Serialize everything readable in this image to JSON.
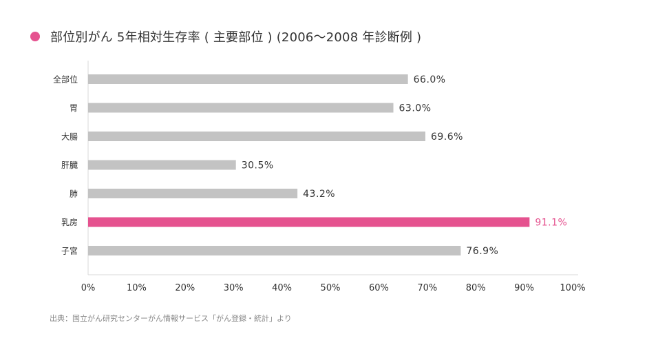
{
  "title": "部位別がん 5年相対生存率 ( 主要部位 ) (2006〜2008 年診断例 )",
  "source": "出典：国立がん研究センターがん情報サービス「がん登録・統計」より",
  "colors": {
    "accent": "#e5528f",
    "bar": "#c3c3c3",
    "axis": "#d9d9d9",
    "text": "#333333",
    "source_text": "#888888"
  },
  "chart_data": {
    "type": "bar",
    "orientation": "horizontal",
    "title": "部位別がん 5年相対生存率 ( 主要部位 ) (2006〜2008 年診断例 )",
    "categories": [
      "全部位",
      "胃",
      "大腸",
      "肝臓",
      "肺",
      "乳房",
      "子宮"
    ],
    "values": [
      66.0,
      63.0,
      69.6,
      30.5,
      43.2,
      91.1,
      76.9
    ],
    "value_labels": [
      "66.0%",
      "63.0%",
      "69.6%",
      "30.5%",
      "43.2%",
      "91.1%",
      "76.9%"
    ],
    "highlight": "乳房",
    "xlim": [
      0,
      100
    ],
    "x_ticks": [
      0,
      10,
      20,
      30,
      40,
      50,
      60,
      70,
      80,
      90,
      100
    ],
    "x_tick_labels": [
      "0%",
      "10%",
      "20%",
      "30%",
      "40%",
      "50%",
      "60%",
      "70%",
      "80%",
      "90%",
      "100%"
    ],
    "xlabel": "",
    "ylabel": "",
    "grid": false,
    "legend": "none"
  }
}
